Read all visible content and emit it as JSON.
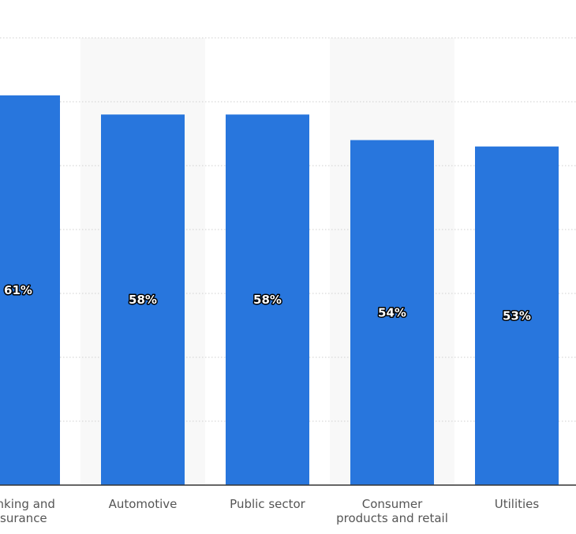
{
  "chart_data": {
    "type": "bar",
    "categories": [
      [
        "Banking and",
        "insurance"
      ],
      [
        "Automotive"
      ],
      [
        "Public sector"
      ],
      [
        "Consumer",
        "products and retail"
      ],
      [
        "Utilities"
      ]
    ],
    "values": [
      61,
      58,
      58,
      54,
      53
    ],
    "value_labels": [
      "61%",
      "58%",
      "58%",
      "54%",
      "53%"
    ],
    "ylim": [
      0,
      70
    ],
    "grid": true,
    "bar_color": "#2876dd",
    "band_color": "#f8f8f8",
    "gridline_color": "#cfcfcf"
  }
}
